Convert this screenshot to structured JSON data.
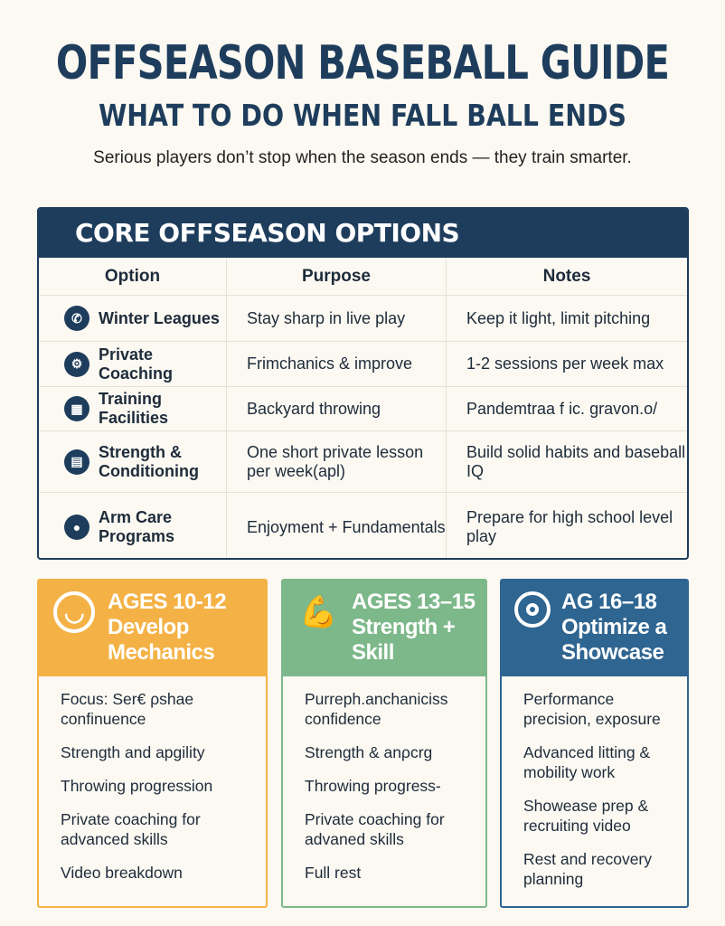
{
  "title": "OFFSEASON BASEBALL GUIDE",
  "subtitle": "WHAT TO DO WHEN FALL BALL ENDS",
  "tagline": "Serious players don’t stop when the season ends — they train smarter.",
  "table": {
    "heading": "CORE OFFSEASON OPTIONS",
    "columns": [
      "Option",
      "Purpose",
      "Notes"
    ],
    "rows": [
      {
        "icon": "phone-icon",
        "option": "Winter Leagues",
        "purpose": "Stay sharp in live play",
        "notes": "Keep it light, limit pitching"
      },
      {
        "icon": "coach-icon",
        "option": "Private Coaching",
        "purpose": "Frimchanics & improve",
        "notes": "1-2 sessions per week max"
      },
      {
        "icon": "facility-icon",
        "option": "Training Facilities",
        "purpose": "Backyard throwing",
        "notes": "Pandemtraa f ic. gravon.o/"
      },
      {
        "icon": "calculator-icon",
        "option": "Strength & Conditioning",
        "purpose": "One short private lesson per week(apl)",
        "notes": "Build solid habits and baseball IQ"
      },
      {
        "icon": "arm-icon",
        "option": "Arm Care Programs",
        "purpose": "Enjoyment + Fundamentals",
        "notes": "Prepare for high school level play"
      }
    ]
  },
  "cards": [
    {
      "color": "#f4b246",
      "icon": "smiley-icon",
      "ages": "AGES 10-12",
      "title": "Develop Mechanics",
      "items": [
        "Focus: Ser€ ρshae confinuence",
        "Strength and apgility",
        "Throwing progression",
        "Private coaching for advanced skills",
        "Video breakdown"
      ]
    },
    {
      "color": "#7db88a",
      "icon": "flexed-arm-icon",
      "ages": "AGES 13–15",
      "title": "Strength + Skill",
      "items": [
        "Purreph.anchaniciss confidence",
        "Strength & anρcrg",
        "Throwing progress-",
        "Private coaching for advaned skills",
        "Full rest"
      ]
    },
    {
      "color": "#2f6591",
      "icon": "target-icon",
      "ages": "AG 16–18",
      "title": "Optimize a Showcase",
      "items": [
        "Performance precision, exposure",
        "Advanced litting & mobility work",
        "Showease prep & recruiting video",
        "Rest and recovery planning"
      ]
    }
  ]
}
